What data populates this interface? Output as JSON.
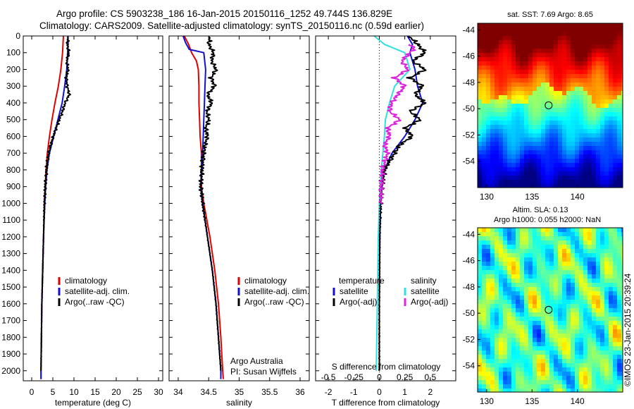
{
  "header": {
    "line1": "Argo profile: CS 5903238_186 16-Jan-2015 20150116_1252 49.744S 136.829E",
    "line2": "Climatology: CARS2009. Satellite-adjusted climatology: synTS_20150116.nc (0.59d earlier)"
  },
  "colors": {
    "climatology": "#e00000",
    "satellite": "#1010d0",
    "argo": "#000000",
    "satellite_s": "#30e0e0",
    "argo_s": "#e020e0"
  },
  "chart_data": [
    {
      "type": "line",
      "xlabel": "temperature (deg C)",
      "ylabel": "",
      "xlim": [
        -2,
        31
      ],
      "ylim": [
        2060,
        0
      ],
      "xticks": [
        "0",
        "5",
        "10",
        "15",
        "20",
        "25",
        "30"
      ],
      "yticks": [
        "0",
        "100",
        "200",
        "300",
        "400",
        "500",
        "600",
        "700",
        "800",
        "900",
        "1000",
        "1100",
        "1200",
        "1300",
        "1400",
        "1500",
        "1600",
        "1700",
        "1800",
        "1900",
        "2000"
      ],
      "legend": [
        "climatology",
        "satellite-adj. clim.",
        "Argo(..raw -QC)"
      ],
      "series": [
        {
          "name": "climatology",
          "depth": [
            0,
            100,
            200,
            300,
            400,
            500,
            600,
            700,
            800,
            900,
            1000,
            1200,
            1400,
            1600,
            1800,
            2000,
            2050
          ],
          "values": [
            7.5,
            7.3,
            6.9,
            6.3,
            5.5,
            4.8,
            4.2,
            3.7,
            3.4,
            3.2,
            3.0,
            2.8,
            2.6,
            2.4,
            2.3,
            2.2,
            2.2
          ]
        },
        {
          "name": "satellite-adj. clim.",
          "depth": [
            0,
            50,
            100,
            200,
            300,
            400,
            500,
            600,
            700,
            800,
            900,
            1000,
            1200,
            1400,
            1600,
            1800,
            2000,
            2050
          ],
          "values": [
            8.6,
            8.6,
            8.5,
            8.3,
            7.8,
            7.2,
            6.2,
            5.2,
            4.2,
            3.6,
            3.3,
            3.1,
            2.8,
            2.6,
            2.4,
            2.3,
            2.2,
            2.2
          ]
        },
        {
          "name": "Argo(..raw -QC)",
          "depth": [
            5,
            50,
            100,
            150,
            200,
            250,
            300,
            350,
            400,
            450,
            500,
            550,
            600,
            650,
            700,
            800,
            900,
            1000,
            1200,
            1400,
            1600,
            1800,
            2000
          ],
          "values": [
            8.6,
            8.4,
            8.8,
            8.3,
            8.6,
            8.2,
            8.4,
            8.9,
            7.9,
            7.3,
            6.5,
            5.8,
            5.1,
            4.5,
            4.0,
            3.5,
            3.2,
            3.0,
            2.8,
            2.6,
            2.4,
            2.3,
            2.2
          ]
        }
      ]
    },
    {
      "type": "line",
      "xlabel": "salinity",
      "xlim": [
        33.85,
        36.15
      ],
      "ylim": [
        2060,
        0
      ],
      "xticks": [
        "34",
        "34.5",
        "35",
        "35.5",
        "36"
      ],
      "legend": [
        "climatology",
        "satellite-adj. clim.",
        "Argo(..raw -QC)"
      ],
      "annotations": [
        "Argo Australia",
        "PI: Susan Wijffels"
      ],
      "series": [
        {
          "name": "climatology",
          "depth": [
            0,
            50,
            100,
            150,
            200,
            300,
            400,
            500,
            600,
            700,
            800,
            900,
            1000,
            1200,
            1400,
            1600,
            1800,
            2000,
            2050
          ],
          "values": [
            34.1,
            34.17,
            34.22,
            34.3,
            34.33,
            34.34,
            34.34,
            34.35,
            34.36,
            34.38,
            34.38,
            34.38,
            34.42,
            34.52,
            34.6,
            34.66,
            34.7,
            34.73,
            34.74
          ]
        },
        {
          "name": "satellite-adj. clim.",
          "depth": [
            0,
            40,
            80,
            100,
            200,
            300,
            400,
            500,
            600,
            700,
            800,
            900,
            1000,
            1200,
            1400,
            1600,
            1800,
            2000,
            2050
          ],
          "values": [
            34.08,
            34.12,
            34.18,
            34.42,
            34.45,
            34.44,
            34.43,
            34.42,
            34.41,
            34.4,
            34.38,
            34.37,
            34.4,
            34.48,
            34.56,
            34.62,
            34.66,
            34.7,
            34.7
          ]
        },
        {
          "name": "Argo(..raw -QC)",
          "depth": [
            5,
            50,
            100,
            150,
            200,
            250,
            300,
            350,
            400,
            450,
            500,
            550,
            600,
            650,
            700,
            800,
            900,
            1000,
            1200,
            1400,
            1600,
            1800,
            2000
          ],
          "values": [
            34.52,
            34.5,
            34.58,
            34.55,
            34.62,
            34.54,
            34.6,
            34.48,
            34.55,
            34.47,
            34.5,
            34.45,
            34.48,
            34.44,
            34.42,
            34.39,
            34.37,
            34.4,
            34.48,
            34.56,
            34.62,
            34.66,
            34.7
          ]
        }
      ]
    },
    {
      "type": "line",
      "xlabel": "T difference from climatology",
      "xlim": [
        -2.5,
        3.0
      ],
      "ylim": [
        2060,
        0
      ],
      "xticks": [
        "-2",
        "-1",
        "0",
        "1",
        "2"
      ],
      "top_axis_label": "S difference from climatology",
      "top_ticks": [
        "-0.5",
        "-0.25",
        "0",
        "0.25",
        "0.5"
      ],
      "legend_left_title": "temperature",
      "legend_right_title": "salinity",
      "legend": [
        "satellite",
        "Argo(-adj)",
        "satellite",
        "Argo(-adj)"
      ],
      "series": [
        {
          "name": "satellite",
          "depth": [
            0,
            50,
            100,
            200,
            300,
            400,
            500,
            600,
            700,
            800,
            900,
            1000,
            1200,
            1600,
            2000
          ],
          "values": [
            1.1,
            1.3,
            1.2,
            1.4,
            1.5,
            1.7,
            1.4,
            1.0,
            0.5,
            0.2,
            0.1,
            0.05,
            0.02,
            0.0,
            0.0
          ]
        },
        {
          "name": "Argo(-adj)",
          "depth": [
            5,
            50,
            100,
            150,
            200,
            250,
            300,
            350,
            400,
            450,
            500,
            550,
            600,
            650,
            700,
            800,
            900,
            1000,
            1200,
            1600,
            2000
          ],
          "values": [
            1.2,
            1.5,
            1.8,
            1.3,
            1.8,
            1.2,
            1.7,
            1.4,
            1.8,
            1.2,
            1.6,
            1.0,
            1.3,
            0.8,
            0.6,
            0.2,
            0.1,
            0.05,
            0.02,
            0.0,
            0.0
          ]
        },
        {
          "name": "satellite",
          "depth": [
            0,
            50,
            100,
            200,
            300,
            400,
            500,
            600,
            800,
            1000,
            1200,
            1600,
            2000
          ],
          "values": [
            -0.05,
            0.05,
            0.25,
            0.3,
            0.15,
            0.1,
            0.06,
            0.05,
            0.02,
            0.0,
            -0.01,
            -0.02,
            -0.03
          ]
        },
        {
          "name": "Argo(-adj)",
          "depth": [
            50,
            70,
            100,
            150,
            200,
            250,
            300,
            350,
            400,
            450,
            500,
            550,
            600,
            650,
            700,
            800,
            900,
            1000
          ],
          "values": [
            0.28,
            0.35,
            0.3,
            0.22,
            0.28,
            0.15,
            0.25,
            0.18,
            0.12,
            0.1,
            0.2,
            0.08,
            0.1,
            0.05,
            0.08,
            0.03,
            0.02,
            0.01
          ]
        }
      ]
    },
    {
      "type": "heatmap",
      "title": "sat. SST: 7.69 Argo: 8.65",
      "xlim": [
        129,
        145
      ],
      "ylim": [
        -56,
        -43.5
      ],
      "xticks": [
        "130",
        "135",
        "140"
      ],
      "yticks": [
        "-44",
        "-46",
        "-48",
        "-50",
        "-52",
        "-54"
      ],
      "marker": {
        "lon": 136.83,
        "lat": -49.74
      }
    },
    {
      "type": "heatmap",
      "title": "Altim. SLA: 0.13",
      "subtitle": "Argo h1000: 0.055 h2000: NaN",
      "xlim": [
        129,
        145
      ],
      "ylim": [
        -56,
        -43.5
      ],
      "xticks": [
        "130",
        "135",
        "140"
      ],
      "yticks": [
        "-44",
        "-46",
        "-48",
        "-50",
        "-52",
        "-54"
      ],
      "marker": {
        "lon": 136.83,
        "lat": -49.74
      }
    }
  ],
  "footer": {
    "credit": "©IMOS 23-Jan-2015 20:39:24"
  }
}
